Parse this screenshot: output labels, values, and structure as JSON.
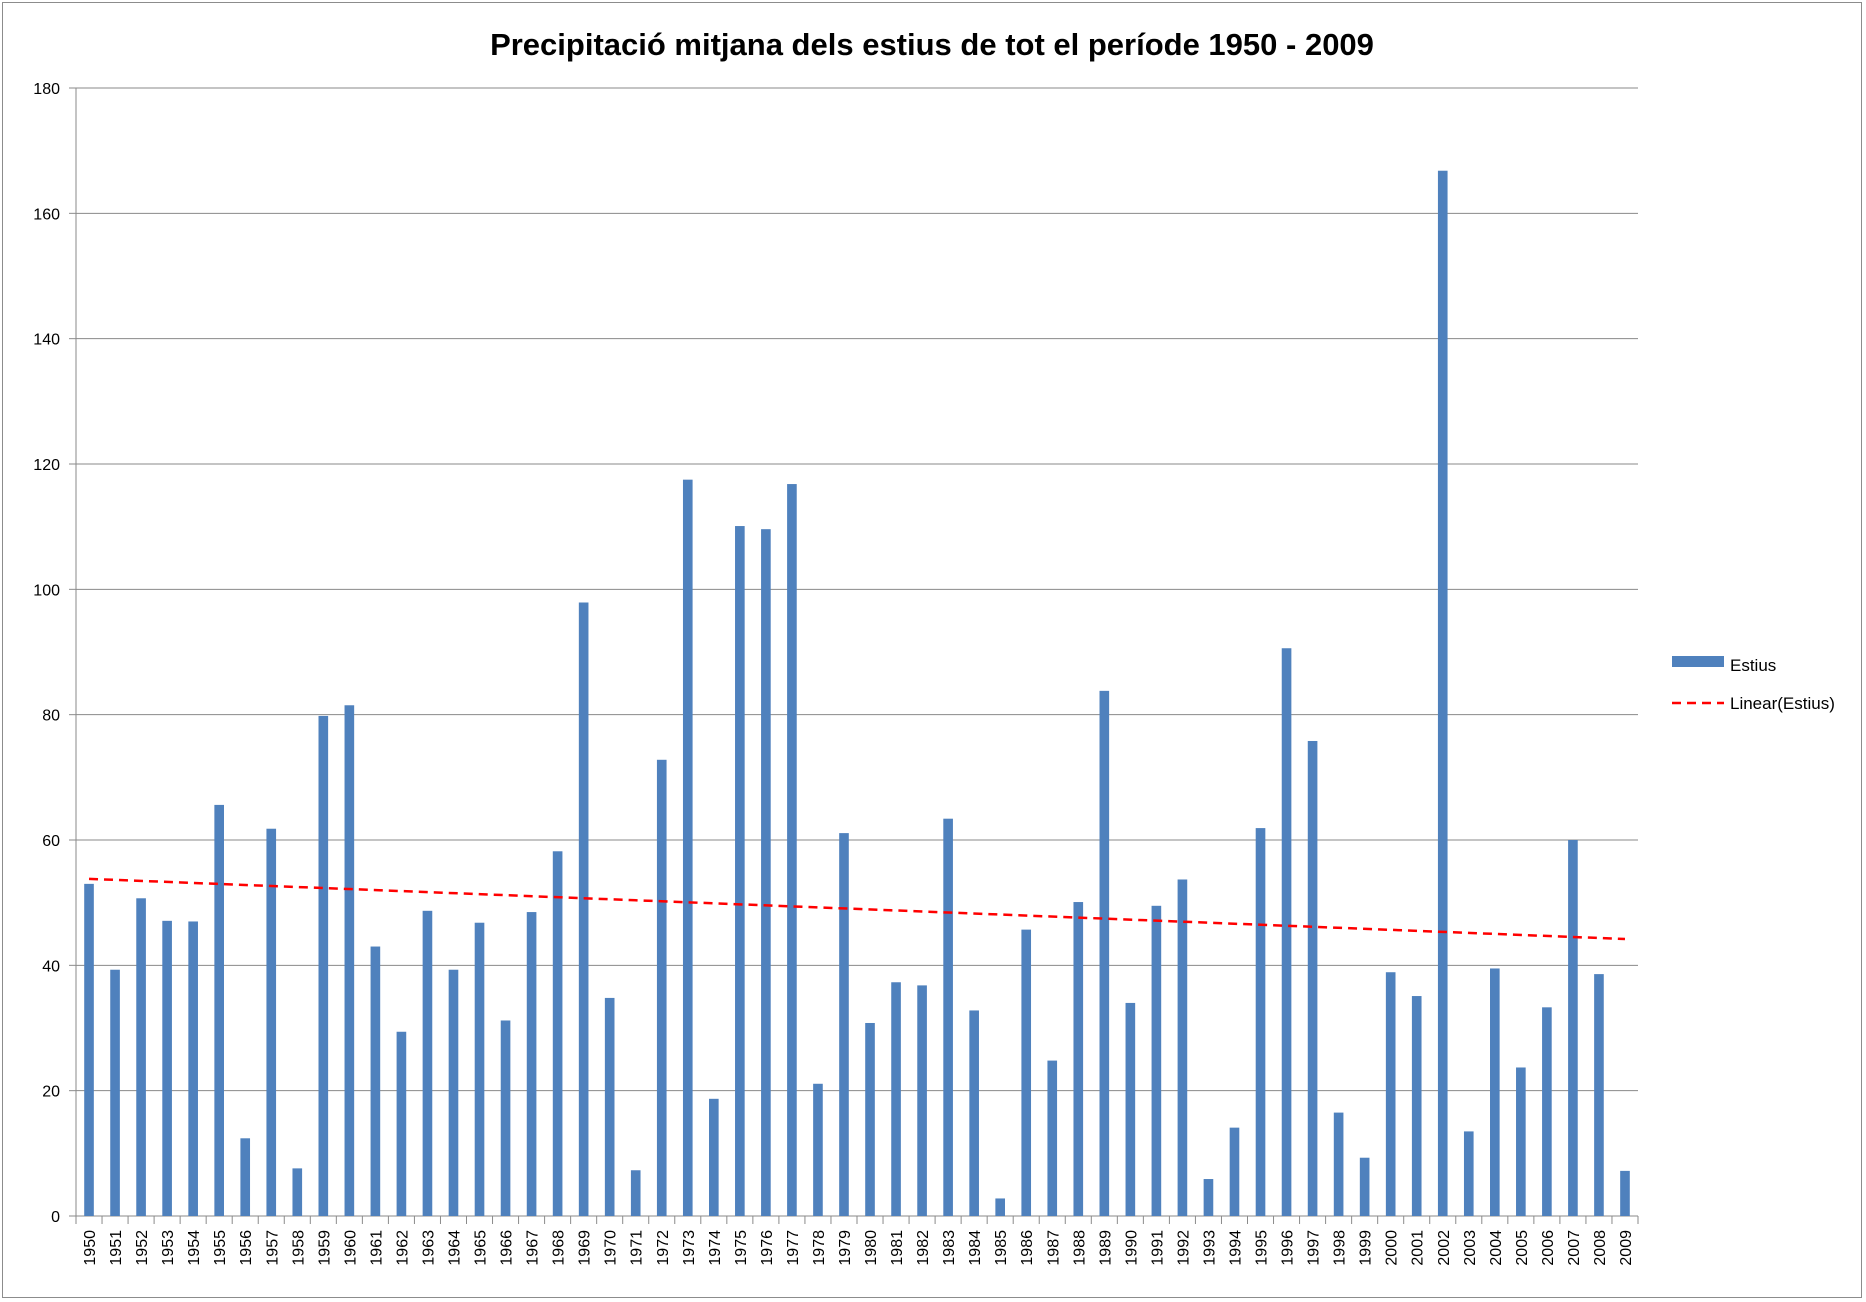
{
  "chart_data": {
    "type": "bar",
    "title": "Precipitació mitjana dels estius de tot el període 1950 - 2009",
    "xlabel": "",
    "ylabel": "",
    "ylim": [
      0,
      180
    ],
    "yticks": [
      0,
      20,
      40,
      60,
      80,
      100,
      120,
      140,
      160,
      180
    ],
    "grid": true,
    "legend_position": "right",
    "categories": [
      "1950",
      "1951",
      "1952",
      "1953",
      "1954",
      "1955",
      "1956",
      "1957",
      "1958",
      "1959",
      "1960",
      "1961",
      "1962",
      "1963",
      "1964",
      "1965",
      "1966",
      "1967",
      "1968",
      "1969",
      "1970",
      "1971",
      "1972",
      "1973",
      "1974",
      "1975",
      "1976",
      "1977",
      "1978",
      "1979",
      "1980",
      "1981",
      "1982",
      "1983",
      "1984",
      "1985",
      "1986",
      "1987",
      "1988",
      "1989",
      "1990",
      "1991",
      "1992",
      "1993",
      "1994",
      "1995",
      "1996",
      "1997",
      "1998",
      "1999",
      "2000",
      "2001",
      "2002",
      "2003",
      "2004",
      "2005",
      "2006",
      "2007",
      "2008",
      "2009"
    ],
    "series": [
      {
        "name": "Estius",
        "color": "#4f81bd",
        "values": [
          53,
          39.3,
          50.7,
          47.1,
          47,
          65.6,
          12.4,
          61.8,
          7.6,
          79.8,
          81.5,
          43,
          29.4,
          48.7,
          39.3,
          46.8,
          31.2,
          48.5,
          58.2,
          97.9,
          34.8,
          7.3,
          72.8,
          117.5,
          18.7,
          110.1,
          109.6,
          116.8,
          21.1,
          61.1,
          30.8,
          37.3,
          36.8,
          63.4,
          32.8,
          2.8,
          45.7,
          24.8,
          50.1,
          83.8,
          34,
          49.5,
          53.7,
          5.9,
          14.1,
          61.9,
          90.6,
          75.8,
          16.5,
          9.3,
          38.9,
          35.1,
          166.8,
          13.5,
          39.5,
          23.7,
          33.3,
          60,
          38.6,
          7.2
        ]
      }
    ],
    "trendline": {
      "name": "Linear(Estius)",
      "type": "linear",
      "color": "#ff0000",
      "start_value": 53.8,
      "end_value": 44.2
    }
  }
}
